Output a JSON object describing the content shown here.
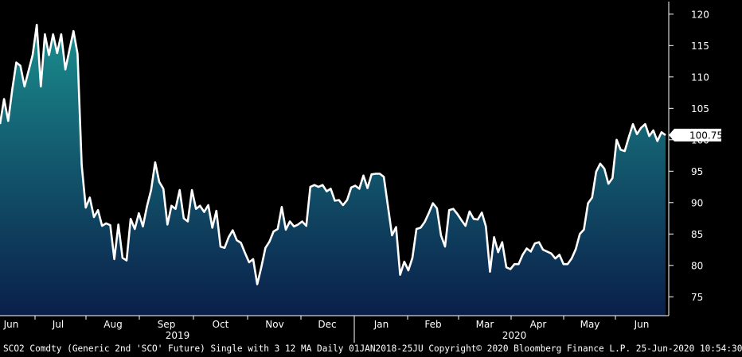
{
  "chart_data": {
    "type": "area",
    "ylim": [
      72,
      122
    ],
    "yticks": [
      75,
      80,
      85,
      90,
      95,
      100,
      105,
      110,
      115,
      120
    ],
    "x_month_labels": [
      "Jun",
      "Jul",
      "Aug",
      "Sep",
      "Oct",
      "Nov",
      "Dec",
      "Jan",
      "Feb",
      "Mar",
      "Apr",
      "May",
      "Jun"
    ],
    "x_year_labels": [
      "2019",
      "2020"
    ],
    "last_value": 100.75,
    "last_value_label": "100.75",
    "colors": {
      "line": "#ffffff",
      "fill_top": "#1a8f8f",
      "fill_bottom": "#0a1f4a",
      "last_label_bg": "#ffffff"
    },
    "grid": false,
    "series": [
      {
        "values": [
          102.5,
          106.5,
          103,
          108,
          112.3,
          111.8,
          108.5,
          111,
          113.5,
          118.3,
          108.5,
          116.8,
          113.5,
          116.8,
          113.8,
          116.8,
          111.2,
          114.3,
          117.3,
          113.7,
          96,
          89.2,
          90.8,
          87.7,
          88.8,
          86.3,
          86.7,
          86.4,
          81,
          86.5,
          81.2,
          80.8,
          87.4,
          85.8,
          88.3,
          86.2,
          89.4,
          92,
          96.4,
          93.3,
          92.2,
          86.5,
          89.5,
          89,
          92,
          87.5,
          87,
          92,
          89,
          89.5,
          88.5,
          89.6,
          86,
          88.7,
          83,
          82.8,
          84.5,
          85.6,
          84,
          83.6,
          82,
          80.5,
          81,
          77,
          79.7,
          82.8,
          83.8,
          85.4,
          85.8,
          89.3,
          85.7,
          87,
          86.2,
          86.5,
          87,
          86.3,
          92.5,
          92.8,
          92.5,
          92.8,
          91.8,
          92.2,
          90.3,
          90.4,
          89.6,
          90.4,
          92.4,
          92.7,
          92.2,
          94.3,
          92.3,
          94.5,
          94.6,
          94.6,
          94.1,
          89.5,
          84.8,
          86.1,
          78.5,
          80.6,
          79.2,
          81.2,
          85.8,
          86,
          86.9,
          88.3,
          89.9,
          89.1,
          84.8,
          83,
          88.8,
          89,
          88.2,
          87.2,
          86.3,
          88.6,
          87.4,
          87.3,
          88.4,
          86.2,
          79,
          84.5,
          82.1,
          83.7,
          79.7,
          79.4,
          80.2,
          80.2,
          81.7,
          82.7,
          82.2,
          83.5,
          83.7,
          82.5,
          82.2,
          81.9,
          81.1,
          81.7,
          80.2,
          80.2,
          81.1,
          82.6,
          85,
          85.7,
          89.9,
          90.8,
          94.9,
          96.2,
          95.4,
          93,
          93.9,
          100,
          98.4,
          98.2,
          100.4,
          102.5,
          100.9,
          101.9,
          102.5,
          100.6,
          101.5,
          99.8,
          101.2,
          100.75
        ]
      }
    ]
  },
  "footer": {
    "text": "SCO2 Comdty (Generic 2nd 'SCO' Future) Single with 3 12 MA  Daily 01JAN2018-25JU  Copyright© 2020 Bloomberg Finance L.P.  25-Jun-2020 10:54:30"
  }
}
